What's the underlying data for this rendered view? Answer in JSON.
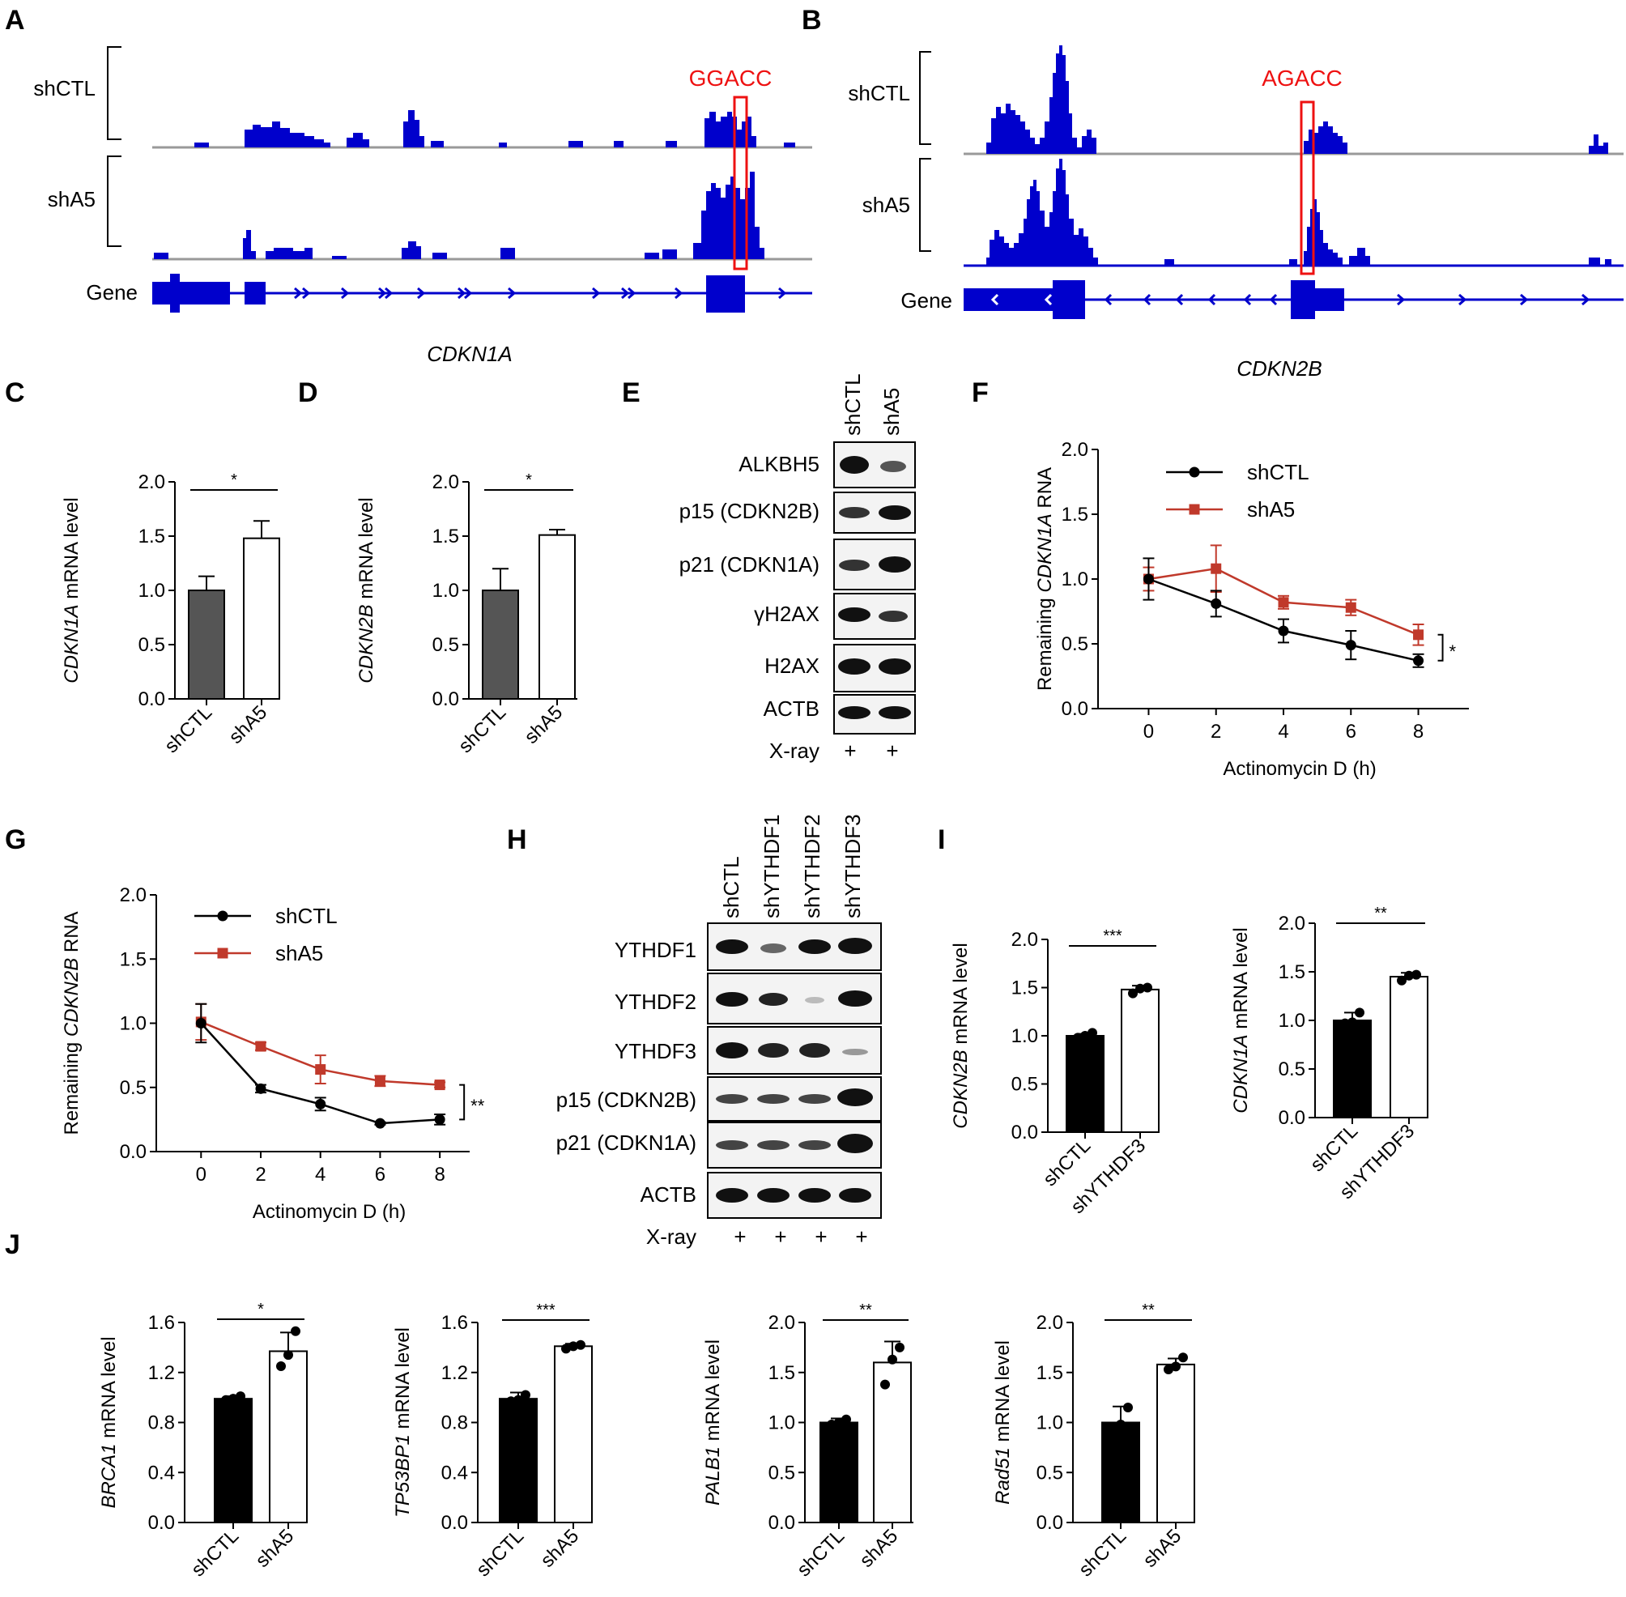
{
  "panel_letters": [
    "A",
    "B",
    "C",
    "D",
    "E",
    "F",
    "G",
    "H",
    "I",
    "J"
  ],
  "tracks": {
    "A": {
      "row1": "shCTL",
      "row2": "shA5",
      "row3": "Gene",
      "motif": "GGACC",
      "gene": "CDKN1A"
    },
    "B": {
      "row1": "shCTL",
      "row2": "shA5",
      "row3": "Gene",
      "motif": "AGACC",
      "gene": "CDKN2B"
    }
  },
  "blots": {
    "E": {
      "lanes": [
        "shCTL",
        "shA5"
      ],
      "bands": [
        "ALKBH5",
        "p15 (CDKN2B)",
        "p21 (CDKN1A)",
        "γH2AX",
        "H2AX",
        "ACTB"
      ],
      "treatment": "X-ray",
      "treatment_marks": [
        "+",
        "+"
      ]
    },
    "H": {
      "lanes": [
        "shCTL",
        "shYTHDF1",
        "shYTHDF2",
        "shYTHDF3"
      ],
      "bands": [
        "YTHDF1",
        "YTHDF2",
        "YTHDF3",
        "p15 (CDKN2B)",
        "p21 (CDKN1A)",
        "ACTB"
      ],
      "treatment": "X-ray",
      "treatment_marks": [
        "+",
        "+",
        "+",
        "+"
      ]
    }
  },
  "colors": {
    "track_blue": "#0000cc",
    "highlight_red": "#ee1111",
    "dark_bar": "#555555",
    "black_bar": "#000000",
    "red_series": "#c0392b"
  },
  "chart_data": [
    {
      "panel": "C",
      "type": "bar",
      "categories": [
        "shCTL",
        "shA5"
      ],
      "values": [
        1.0,
        1.48
      ],
      "errors": [
        0.13,
        0.16
      ],
      "ylabel_gene": "CDKN1A",
      "ylabel_rest": " mRNA level",
      "ylim": [
        0,
        2.0
      ],
      "yticks": [
        "0.0",
        "0.5",
        "1.0",
        "1.5",
        "2.0"
      ],
      "significance": "*"
    },
    {
      "panel": "D",
      "type": "bar",
      "categories": [
        "shCTL",
        "shA5"
      ],
      "values": [
        1.0,
        1.51
      ],
      "errors": [
        0.2,
        0.05
      ],
      "ylabel_gene": "CDKN2B",
      "ylabel_rest": " mRNA level",
      "ylim": [
        0,
        2.0
      ],
      "yticks": [
        "0.0",
        "0.5",
        "1.0",
        "1.5",
        "2.0"
      ],
      "significance": "*"
    },
    {
      "panel": "F",
      "type": "line",
      "x": [
        0,
        2,
        4,
        6,
        8
      ],
      "series": [
        {
          "name": "shCTL",
          "values": [
            1.0,
            0.81,
            0.6,
            0.49,
            0.37
          ],
          "errors": [
            0.16,
            0.1,
            0.09,
            0.11,
            0.05
          ]
        },
        {
          "name": "shA5",
          "values": [
            1.0,
            1.08,
            0.82,
            0.78,
            0.57
          ],
          "errors": [
            0.09,
            0.18,
            0.05,
            0.06,
            0.08
          ]
        }
      ],
      "xticks": [
        "0",
        "2",
        "4",
        "6",
        "8"
      ],
      "yticks": [
        "0.0",
        "0.5",
        "1.0",
        "1.5",
        "2.0"
      ],
      "xlabel": "Actinomycin D (h)",
      "ylabel_pre": "Remaining ",
      "ylabel_gene": "CDKN1A",
      "ylabel_post": " RNA",
      "xlim": [
        -1.5,
        9.5
      ],
      "ylim": [
        0,
        2.0
      ],
      "significance": "*"
    },
    {
      "panel": "G",
      "type": "line",
      "x": [
        0,
        2,
        4,
        6,
        8
      ],
      "series": [
        {
          "name": "shCTL",
          "values": [
            1.0,
            0.49,
            0.37,
            0.22,
            0.25
          ],
          "errors": [
            0.15,
            0.03,
            0.05,
            0.01,
            0.04
          ]
        },
        {
          "name": "shA5",
          "values": [
            1.01,
            0.82,
            0.64,
            0.55,
            0.52
          ],
          "errors": [
            0.14,
            0.03,
            0.11,
            0.04,
            0.02
          ]
        }
      ],
      "xticks": [
        "0",
        "2",
        "4",
        "6",
        "8"
      ],
      "yticks": [
        "0.0",
        "0.5",
        "1.0",
        "1.5",
        "2.0"
      ],
      "xlabel": "Actinomycin D (h)",
      "ylabel_pre": "Remaining ",
      "ylabel_gene": "CDKN2B",
      "ylabel_post": " RNA",
      "xlim": [
        -1.5,
        9
      ],
      "ylim": [
        0,
        2.0
      ],
      "significance": "**"
    },
    {
      "panel": "I",
      "type": "bar",
      "categories": [
        "shCTL",
        "shYTHDF3"
      ],
      "values": [
        1.0,
        1.48
      ],
      "errors": [
        0.02,
        0.04
      ],
      "points": [
        [
          0.98,
          1.0,
          1.03
        ],
        [
          1.44,
          1.49,
          1.5
        ]
      ],
      "ylabel_gene": "CDKN2B",
      "ylabel_rest": " mRNA level",
      "ylim": [
        0,
        2.0
      ],
      "yticks": [
        "0.0",
        "0.5",
        "1.0",
        "1.5",
        "2.0"
      ],
      "significance": "***"
    },
    {
      "panel": "I",
      "type": "bar",
      "categories": [
        "shCTL",
        "shYTHDF3"
      ],
      "values": [
        1.0,
        1.45
      ],
      "errors": [
        0.08,
        0.04
      ],
      "points": [
        [
          0.97,
          0.98,
          1.08
        ],
        [
          1.41,
          1.46,
          1.47
        ]
      ],
      "ylabel_gene": "CDKN1A",
      "ylabel_rest": " mRNA level",
      "ylim": [
        0,
        2.0
      ],
      "yticks": [
        "0.0",
        "0.5",
        "1.0",
        "1.5",
        "2.0"
      ],
      "significance": "**"
    },
    {
      "panel": "J",
      "type": "bar",
      "categories": [
        "shCTL",
        "shA5"
      ],
      "values": [
        0.99,
        1.37
      ],
      "errors": [
        0.02,
        0.15
      ],
      "points": [
        [
          0.98,
          0.99,
          1.01
        ],
        [
          1.25,
          1.34,
          1.53
        ]
      ],
      "ylabel_gene": "BRCA1",
      "ylabel_rest": " mRNA level",
      "ylim": [
        0,
        1.6
      ],
      "yticks": [
        "0.0",
        "0.4",
        "0.8",
        "1.2",
        "1.6"
      ],
      "significance": "*"
    },
    {
      "panel": "J",
      "type": "bar",
      "categories": [
        "shCTL",
        "shA5"
      ],
      "values": [
        0.99,
        1.41
      ],
      "errors": [
        0.05,
        0.02
      ],
      "points": [
        [
          0.97,
          0.98,
          1.02
        ],
        [
          1.39,
          1.41,
          1.42
        ]
      ],
      "ylabel_gene": "TP53BP1",
      "ylabel_rest": " mRNA level",
      "ylim": [
        0,
        1.6
      ],
      "yticks": [
        "0.0",
        "0.4",
        "0.8",
        "1.2",
        "1.6"
      ],
      "significance": "***"
    },
    {
      "panel": "J",
      "type": "bar",
      "categories": [
        "shCTL",
        "shA5"
      ],
      "values": [
        1.0,
        1.6
      ],
      "errors": [
        0.04,
        0.21
      ],
      "points": [
        [
          0.98,
          1.0,
          1.03
        ],
        [
          1.38,
          1.63,
          1.75
        ]
      ],
      "ylabel_gene": "PALB1",
      "ylabel_rest": " mRNA level",
      "ylim": [
        0,
        2.0
      ],
      "yticks": [
        "0.0",
        "0.5",
        "1.0",
        "1.5",
        "2.0"
      ],
      "significance": "**"
    },
    {
      "panel": "J",
      "type": "bar",
      "categories": [
        "shCTL",
        "shA5"
      ],
      "values": [
        1.0,
        1.58
      ],
      "errors": [
        0.16,
        0.06
      ],
      "points": [
        [
          0.9,
          0.98,
          1.15
        ],
        [
          1.53,
          1.56,
          1.65
        ]
      ],
      "ylabel_gene": "Rad51",
      "ylabel_rest": " mRNA level",
      "ylim": [
        0,
        2.0
      ],
      "yticks": [
        "0.0",
        "0.5",
        "1.0",
        "1.5",
        "2.0"
      ],
      "significance": "**"
    }
  ]
}
